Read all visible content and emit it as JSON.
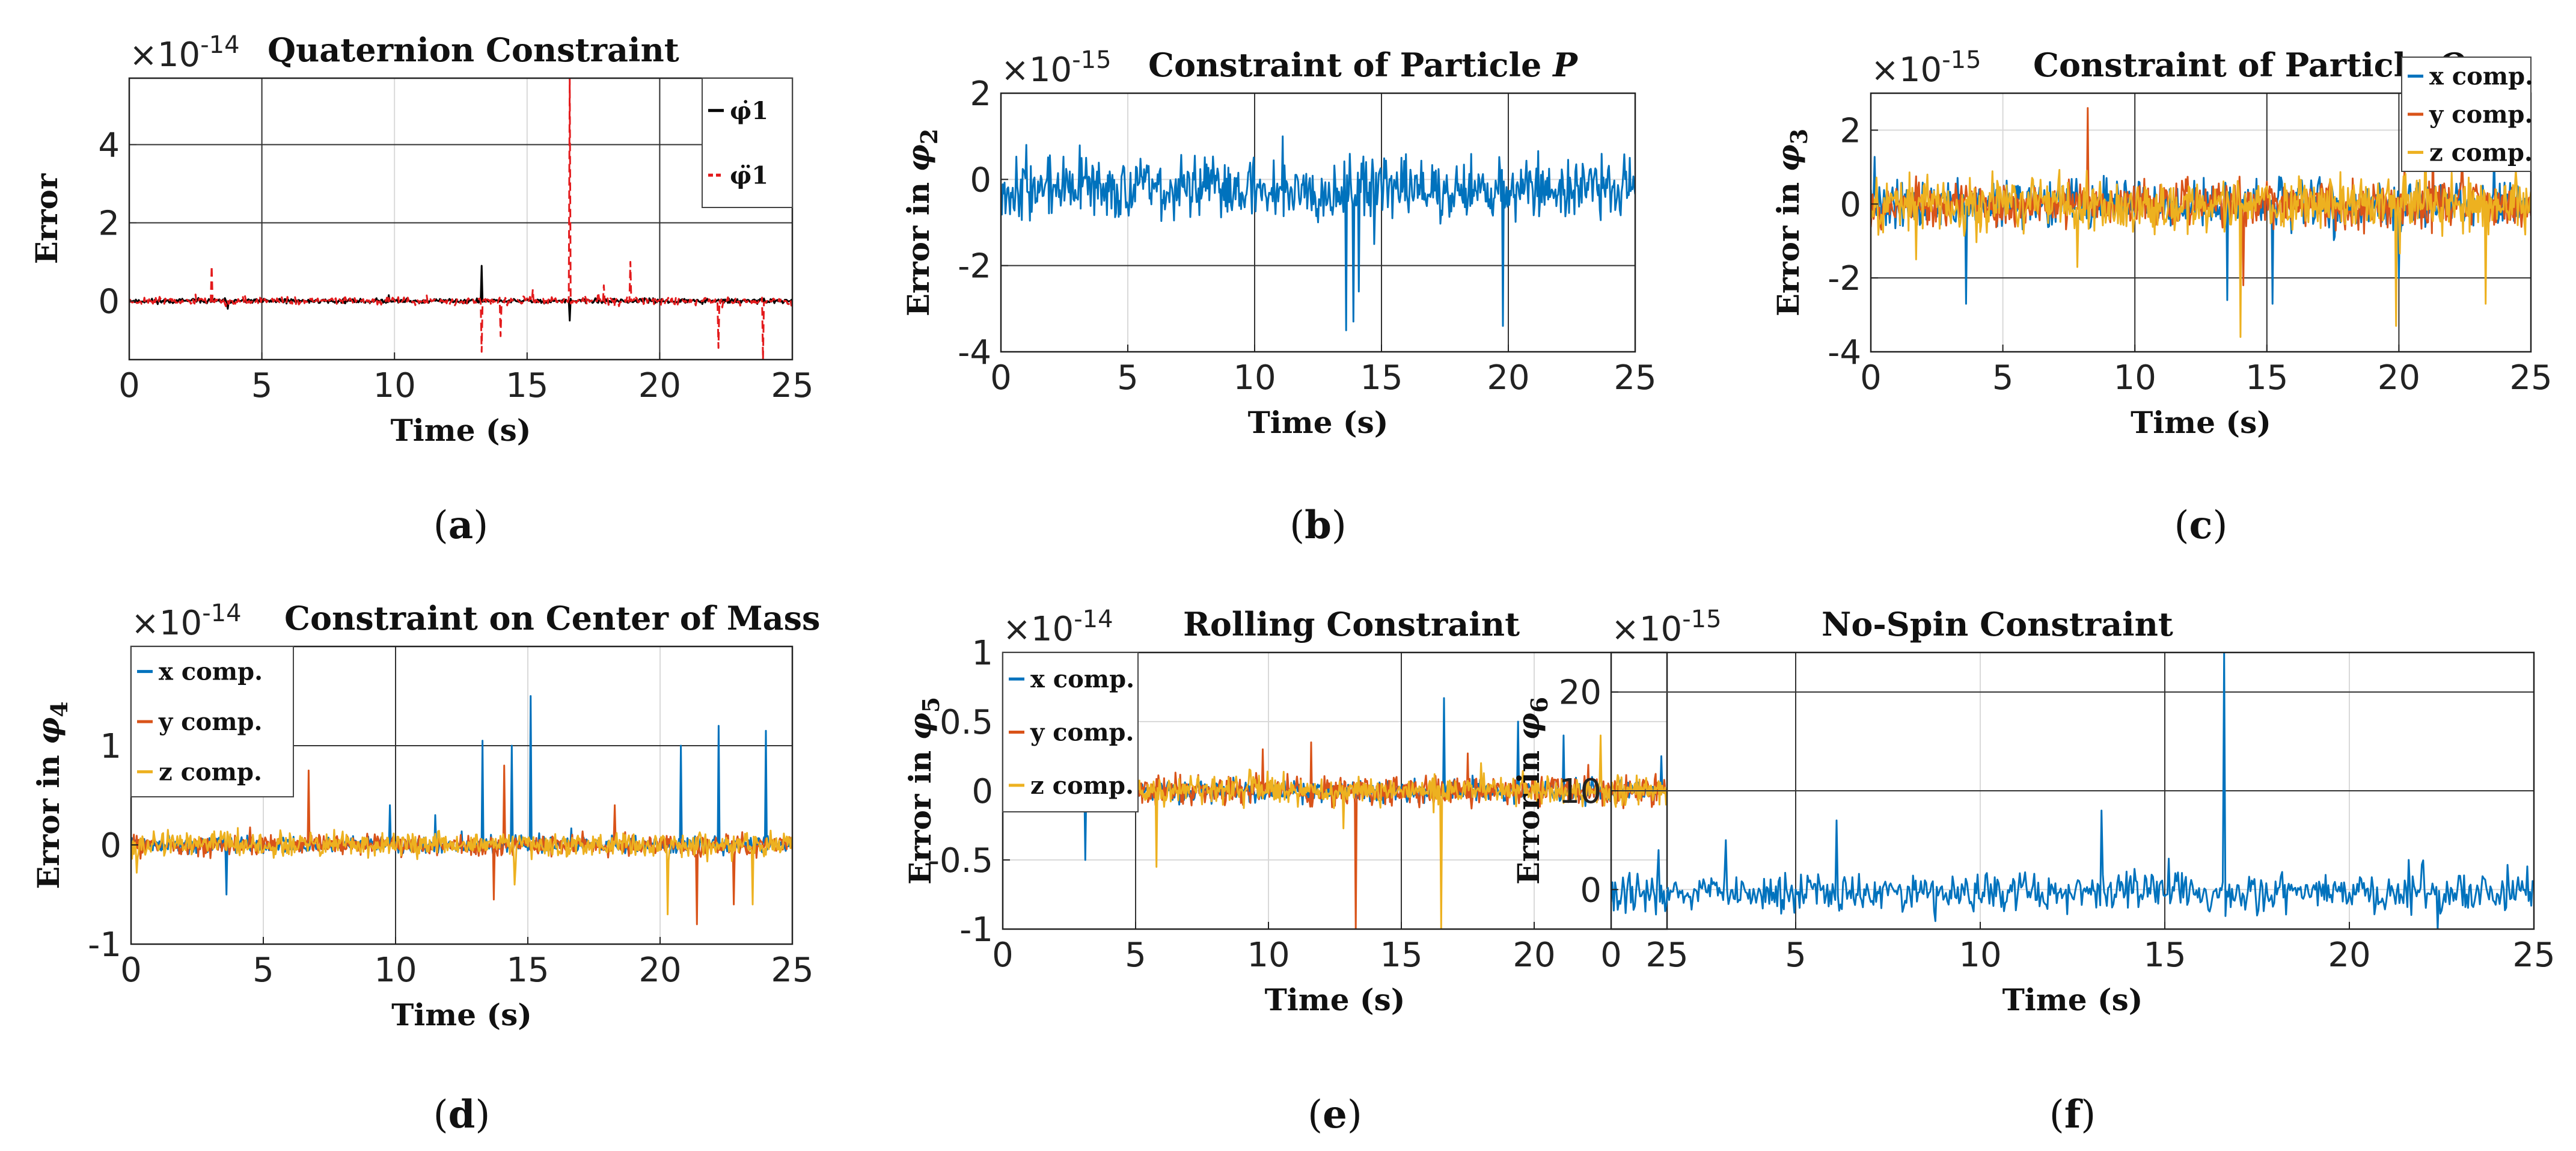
{
  "colors": {
    "blue": "#0072BD",
    "red": "#E31A1C",
    "orange": "#D95319",
    "yellow": "#EDB120",
    "black": "#000000"
  },
  "chart_data": [
    {
      "id": "a",
      "type": "line",
      "title": "Quaternion Constraint",
      "multiplier_base": "×10",
      "multiplier_exp": "-14",
      "xlabel": "Time (s)",
      "ylabel": "Error",
      "ylabel_sym": "",
      "ylabel_sub": "",
      "xlim": [
        0,
        25
      ],
      "ylim": [
        -1.5,
        5.7
      ],
      "xticks": [
        0,
        5,
        10,
        15,
        20,
        25
      ],
      "yticks": [
        0,
        2,
        4
      ],
      "caption_open": "(",
      "caption_letter": "a",
      "caption_close": ")",
      "legend": {
        "position": "top-right",
        "entries": [
          {
            "label": "φ̇1",
            "color": "#000000",
            "dash": false
          },
          {
            "label": "φ̈1",
            "color": "#E31A1C",
            "dash": true
          }
        ]
      },
      "series": [
        {
          "name": "phi1 dot",
          "color": "#000000",
          "dash": false,
          "noise": 0.03,
          "seed": 11,
          "spikes": [
            [
              13.3,
              0.9
            ],
            [
              16.6,
              -0.5
            ],
            [
              3.7,
              -0.2
            ],
            [
              9.8,
              0.15
            ]
          ]
        },
        {
          "name": "phi1 ddot",
          "color": "#E31A1C",
          "dash": true,
          "noise": 0.05,
          "seed": 23,
          "spikes": [
            [
              3.1,
              0.9
            ],
            [
              16.6,
              5.7
            ],
            [
              13.3,
              -1.3
            ],
            [
              14.0,
              -0.9
            ],
            [
              17.9,
              0.4
            ],
            [
              18.9,
              1.0
            ],
            [
              22.2,
              -1.2
            ],
            [
              23.9,
              -1.5
            ],
            [
              15.2,
              0.3
            ]
          ]
        }
      ]
    },
    {
      "id": "b",
      "type": "line",
      "title": "Constraint of Particle",
      "title_italic": "P",
      "multiplier_base": "×10",
      "multiplier_exp": "-15",
      "xlabel": "Time (s)",
      "ylabel": "Error in ",
      "ylabel_sym": "φ",
      "ylabel_sub": "2",
      "xlim": [
        0,
        25
      ],
      "ylim": [
        -4,
        2
      ],
      "xticks": [
        0,
        5,
        10,
        15,
        20,
        25
      ],
      "yticks": [
        -4,
        -2,
        0,
        2
      ],
      "caption_open": "(",
      "caption_letter": "b",
      "caption_close": ")",
      "series": [
        {
          "name": "phi2",
          "color": "#0072BD",
          "dash": false,
          "noise": 0.35,
          "seed": 37,
          "offset": -0.2,
          "spikes": [
            [
              13.6,
              -3.5
            ],
            [
              13.9,
              -3.3
            ],
            [
              14.1,
              -2.6
            ],
            [
              19.8,
              -3.4
            ],
            [
              11.1,
              1.0
            ],
            [
              1.0,
              0.8
            ],
            [
              14.7,
              -1.5
            ]
          ]
        }
      ]
    },
    {
      "id": "c",
      "type": "line",
      "title": "Constraint of Particle",
      "title_italic": "O",
      "multiplier_base": "×10",
      "multiplier_exp": "-15",
      "xlabel": "Time (s)",
      "ylabel": "Error in ",
      "ylabel_sym": "φ",
      "ylabel_sub": "3",
      "xlim": [
        0,
        25
      ],
      "ylim": [
        -4,
        3
      ],
      "xticks": [
        0,
        5,
        10,
        15,
        20,
        25
      ],
      "yticks": [
        -4,
        -2,
        0,
        2
      ],
      "caption_open": "(",
      "caption_letter": "c",
      "caption_close": ")",
      "legend": {
        "position": "top-right",
        "entries": [
          {
            "label": "x comp.",
            "color": "#0072BD",
            "dash": false
          },
          {
            "label": "y comp.",
            "color": "#D95319",
            "dash": false
          },
          {
            "label": "z comp.",
            "color": "#EDB120",
            "dash": false
          }
        ]
      },
      "series": [
        {
          "name": "x comp.",
          "color": "#0072BD",
          "dash": false,
          "noise": 0.3,
          "seed": 41,
          "spikes": [
            [
              3.6,
              -2.7
            ],
            [
              13.5,
              -2.6
            ],
            [
              15.2,
              -2.7
            ],
            [
              20.0,
              -2.0
            ],
            [
              23.6,
              1.4
            ]
          ]
        },
        {
          "name": "y comp.",
          "color": "#D95319",
          "dash": false,
          "noise": 0.3,
          "seed": 53,
          "spikes": [
            [
              8.2,
              2.6
            ],
            [
              21.3,
              2.0
            ],
            [
              22.4,
              1.2
            ],
            [
              14.1,
              -2.2
            ]
          ]
        },
        {
          "name": "z comp.",
          "color": "#EDB120",
          "dash": false,
          "noise": 0.35,
          "seed": 67,
          "spikes": [
            [
              14.0,
              -3.6
            ],
            [
              19.9,
              -3.3
            ],
            [
              21.0,
              1.7
            ],
            [
              23.3,
              -2.7
            ],
            [
              1.7,
              -1.5
            ]
          ]
        }
      ]
    },
    {
      "id": "d",
      "type": "line",
      "title": "Constraint on Center of Mass",
      "multiplier_base": "×10",
      "multiplier_exp": "-14",
      "xlabel": "Time (s)",
      "ylabel": "Error in ",
      "ylabel_sym": "φ",
      "ylabel_sub": "4",
      "xlim": [
        0,
        25
      ],
      "ylim": [
        -1,
        2
      ],
      "xticks": [
        0,
        5,
        10,
        15,
        20,
        25
      ],
      "yticks": [
        -1,
        0,
        1
      ],
      "caption_open": "(",
      "caption_letter": "d",
      "caption_close": ")",
      "legend": {
        "position": "top-left",
        "entries": [
          {
            "label": "x comp.",
            "color": "#0072BD",
            "dash": false
          },
          {
            "label": "y comp.",
            "color": "#D95319",
            "dash": false
          },
          {
            "label": "z comp.",
            "color": "#EDB120",
            "dash": false
          }
        ]
      },
      "series": [
        {
          "name": "x comp.",
          "color": "#0072BD",
          "dash": false,
          "noise": 0.04,
          "seed": 71,
          "spikes": [
            [
              3.6,
              -0.5
            ],
            [
              13.3,
              1.05
            ],
            [
              14.4,
              1.0
            ],
            [
              15.1,
              1.5
            ],
            [
              20.8,
              1.0
            ],
            [
              22.2,
              1.2
            ],
            [
              24.0,
              1.15
            ],
            [
              9.8,
              0.4
            ],
            [
              11.5,
              0.3
            ]
          ]
        },
        {
          "name": "y comp.",
          "color": "#D95319",
          "dash": false,
          "noise": 0.05,
          "seed": 83,
          "spikes": [
            [
              6.7,
              0.75
            ],
            [
              13.7,
              -0.55
            ],
            [
              14.1,
              0.8
            ],
            [
              21.4,
              -0.8
            ],
            [
              22.8,
              -0.6
            ],
            [
              18.3,
              0.4
            ]
          ]
        },
        {
          "name": "z comp.",
          "color": "#EDB120",
          "dash": false,
          "noise": 0.06,
          "seed": 97,
          "spikes": [
            [
              20.3,
              -0.7
            ],
            [
              23.5,
              -0.6
            ],
            [
              14.5,
              -0.4
            ]
          ]
        }
      ]
    },
    {
      "id": "e",
      "type": "line",
      "title": "Rolling Constraint",
      "multiplier_base": "×10",
      "multiplier_exp": "-14",
      "xlabel": "Time (s)",
      "ylabel": "Error in ",
      "ylabel_sym": "φ",
      "ylabel_sub": "5",
      "xlim": [
        0,
        25
      ],
      "ylim": [
        -1,
        1
      ],
      "xticks": [
        0,
        5,
        10,
        15,
        20,
        25
      ],
      "yticks": [
        -1,
        -0.5,
        0,
        0.5,
        1
      ],
      "caption_open": "(",
      "caption_letter": "e",
      "caption_close": ")",
      "legend": {
        "position": "top-left",
        "entries": [
          {
            "label": "x comp.",
            "color": "#0072BD",
            "dash": false
          },
          {
            "label": "y comp.",
            "color": "#D95319",
            "dash": false
          },
          {
            "label": "z comp.",
            "color": "#EDB120",
            "dash": false
          }
        ]
      },
      "series": [
        {
          "name": "x comp.",
          "color": "#0072BD",
          "dash": false,
          "noise": 0.04,
          "seed": 101,
          "spikes": [
            [
              3.1,
              -0.5
            ],
            [
              16.6,
              0.67
            ],
            [
              19.4,
              0.5
            ],
            [
              21.1,
              0.4
            ],
            [
              24.8,
              0.25
            ]
          ]
        },
        {
          "name": "y comp.",
          "color": "#D95319",
          "dash": false,
          "noise": 0.05,
          "seed": 113,
          "spikes": [
            [
              13.3,
              -1.0
            ],
            [
              11.6,
              0.35
            ],
            [
              9.8,
              0.3
            ],
            [
              17.5,
              0.27
            ]
          ]
        },
        {
          "name": "z comp.",
          "color": "#EDB120",
          "dash": false,
          "noise": 0.05,
          "seed": 127,
          "spikes": [
            [
              16.5,
              -1.0
            ],
            [
              5.8,
              -0.55
            ],
            [
              22.5,
              0.4
            ],
            [
              18.0,
              0.2
            ]
          ]
        }
      ]
    },
    {
      "id": "f",
      "type": "line",
      "title": "No-Spin Constraint",
      "multiplier_base": "×10",
      "multiplier_exp": "-15",
      "xlabel": "Time (s)",
      "ylabel": "Error in ",
      "ylabel_sym": "φ",
      "ylabel_sub": "6",
      "xlim": [
        0,
        25
      ],
      "ylim": [
        -4,
        24
      ],
      "xticks": [
        0,
        5,
        10,
        15,
        20,
        25
      ],
      "yticks": [
        0,
        10,
        20
      ],
      "caption_open": "(",
      "caption_letter": "f",
      "caption_close": ")",
      "series": [
        {
          "name": "phi6",
          "color": "#0072BD",
          "dash": false,
          "noise": 0.9,
          "seed": 131,
          "offset": -0.3,
          "spikes": [
            [
              16.6,
              24
            ],
            [
              13.3,
              8
            ],
            [
              6.1,
              7
            ],
            [
              3.1,
              5
            ],
            [
              1.3,
              4
            ],
            [
              21.6,
              3
            ],
            [
              24.3,
              2.5
            ],
            [
              22.4,
              -4
            ]
          ]
        }
      ]
    }
  ]
}
